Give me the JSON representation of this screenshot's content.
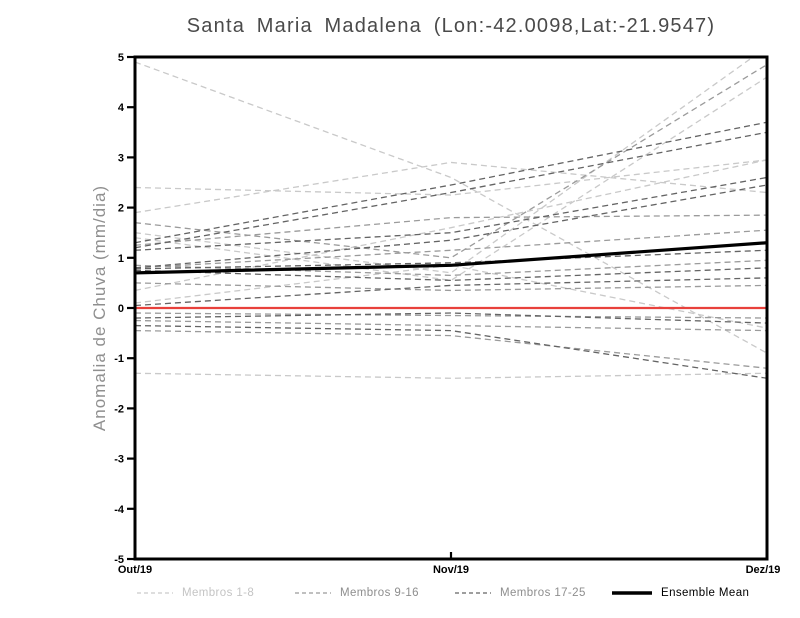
{
  "title": "Santa Maria Madalena (Lon:-42.0098,Lat:-21.9547)",
  "chart_data": {
    "type": "line",
    "title": "Santa Maria Madalena (Lon:-42.0098,Lat:-21.9547)",
    "xlabel": "",
    "ylabel": "Anomalia de Chuva (mm/dia)",
    "x_categories": [
      "Out/19",
      "Nov/19",
      "Dez/19"
    ],
    "ylim": [
      -5,
      5
    ],
    "y_ticks": [
      -5,
      -4,
      -3,
      -2,
      -1,
      0,
      1,
      2,
      3,
      4,
      5
    ],
    "grid": false,
    "legend_position": "bottom",
    "frame_color": "#000000",
    "zero_line_color": "#e8413c",
    "mean_line_color": "#000000",
    "groups": [
      {
        "label": "Membros 1-8",
        "color": "#c9c9c9",
        "label_color": "#c4c4c4",
        "style": "dashed"
      },
      {
        "label": "Membros 9-16",
        "color": "#9b9b9b",
        "label_color": "#8e8e8e",
        "style": "dashed"
      },
      {
        "label": "Membros 17-25",
        "color": "#646464",
        "label_color": "#8e8e8e",
        "style": "dashed"
      },
      {
        "label": "Ensemble Mean",
        "color": "#000000",
        "label_color": "#000000",
        "style": "solid"
      }
    ],
    "series": [
      {
        "name": "Membro 1",
        "group": 0,
        "values": [
          4.9,
          2.6,
          -0.9
        ]
      },
      {
        "name": "Membro 2",
        "group": 0,
        "values": [
          2.4,
          2.25,
          2.95
        ]
      },
      {
        "name": "Membro 3",
        "group": 0,
        "values": [
          1.9,
          2.9,
          2.3
        ]
      },
      {
        "name": "Membro 4",
        "group": 0,
        "values": [
          1.5,
          0.7,
          5.2
        ]
      },
      {
        "name": "Membro 5",
        "group": 0,
        "values": [
          1.4,
          0.55,
          4.6
        ]
      },
      {
        "name": "Membro 6",
        "group": 0,
        "values": [
          0.35,
          1.6,
          2.95
        ]
      },
      {
        "name": "Membro 7",
        "group": 0,
        "values": [
          0.1,
          0.85,
          -0.4
        ]
      },
      {
        "name": "Membro 8",
        "group": 0,
        "values": [
          -1.3,
          -1.4,
          -1.3
        ]
      },
      {
        "name": "Membro 9",
        "group": 1,
        "values": [
          1.7,
          1.0,
          4.85
        ]
      },
      {
        "name": "Membro 10",
        "group": 1,
        "values": [
          0.85,
          0.65,
          0.95
        ]
      },
      {
        "name": "Membro 11",
        "group": 1,
        "values": [
          0.8,
          1.15,
          1.55
        ]
      },
      {
        "name": "Membro 12",
        "group": 1,
        "values": [
          1.25,
          1.8,
          1.85
        ]
      },
      {
        "name": "Membro 13",
        "group": 1,
        "values": [
          0.5,
          0.35,
          0.45
        ]
      },
      {
        "name": "Membro 14",
        "group": 1,
        "values": [
          -0.1,
          -0.15,
          -0.2
        ]
      },
      {
        "name": "Membro 15",
        "group": 1,
        "values": [
          -0.25,
          -0.35,
          -0.45
        ]
      },
      {
        "name": "Membro 16",
        "group": 1,
        "values": [
          -0.45,
          -0.55,
          -1.2
        ]
      },
      {
        "name": "Membro 17",
        "group": 2,
        "values": [
          1.3,
          2.45,
          3.7
        ]
      },
      {
        "name": "Membro 18",
        "group": 2,
        "values": [
          1.2,
          2.3,
          3.5
        ]
      },
      {
        "name": "Membro 19",
        "group": 2,
        "values": [
          1.15,
          1.5,
          2.6
        ]
      },
      {
        "name": "Membro 20",
        "group": 2,
        "values": [
          0.8,
          1.35,
          2.45
        ]
      },
      {
        "name": "Membro 21",
        "group": 2,
        "values": [
          0.78,
          0.9,
          1.15
        ]
      },
      {
        "name": "Membro 22",
        "group": 2,
        "values": [
          0.75,
          0.55,
          0.8
        ]
      },
      {
        "name": "Membro 23",
        "group": 2,
        "values": [
          0.05,
          0.45,
          0.6
        ]
      },
      {
        "name": "Membro 24",
        "group": 2,
        "values": [
          -0.2,
          -0.1,
          -0.3
        ]
      },
      {
        "name": "Membro 25",
        "group": 2,
        "values": [
          -0.35,
          -0.45,
          -1.4
        ]
      },
      {
        "name": "Ensemble Mean",
        "group": 3,
        "role": "mean",
        "values": [
          0.7,
          0.85,
          1.3
        ]
      },
      {
        "name": "Zero",
        "group": -1,
        "role": "zero",
        "values": [
          0,
          0,
          0
        ]
      }
    ]
  }
}
